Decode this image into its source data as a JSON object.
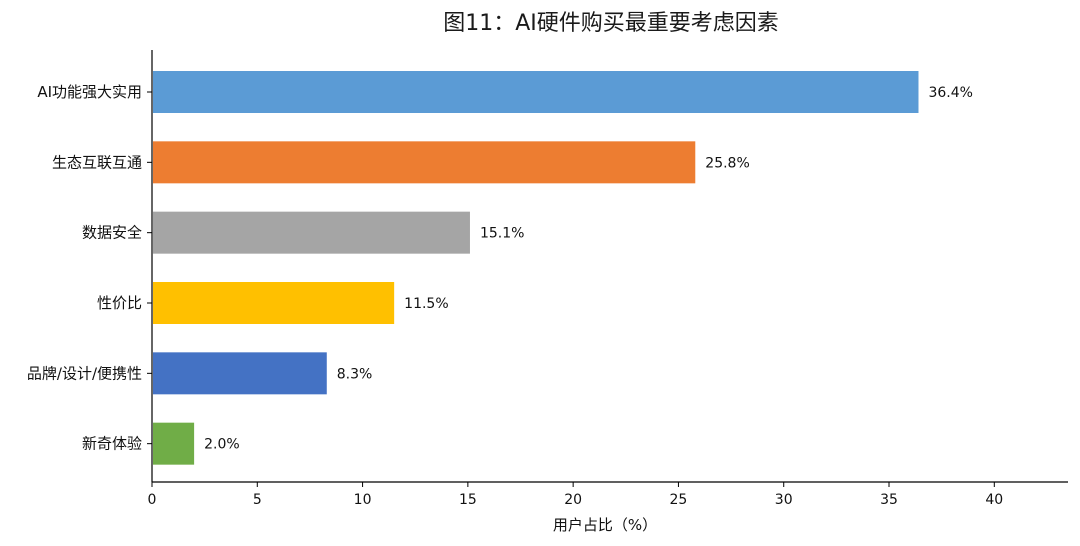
{
  "chart_data": {
    "type": "bar",
    "orientation": "horizontal",
    "title": "图11：AI硬件购买最重要考虑因素",
    "xlabel": "用户占比（%）",
    "ylabel": "",
    "xlim": [
      0,
      43.5
    ],
    "xticks": [
      0,
      5,
      10,
      15,
      20,
      25,
      30,
      35,
      40
    ],
    "grid": false,
    "categories": [
      "AI功能强大实用",
      "生态互联互通",
      "数据安全",
      "性价比",
      "品牌/设计/便携性",
      "新奇体验"
    ],
    "values": [
      36.4,
      25.8,
      15.1,
      11.5,
      8.3,
      2.0
    ],
    "value_labels": [
      "36.4%",
      "25.8%",
      "15.1%",
      "11.5%",
      "8.3%",
      "2.0%"
    ],
    "colors": [
      "#5b9bd5",
      "#ed7d31",
      "#a5a5a5",
      "#ffc000",
      "#4472c4",
      "#70ad47"
    ]
  }
}
